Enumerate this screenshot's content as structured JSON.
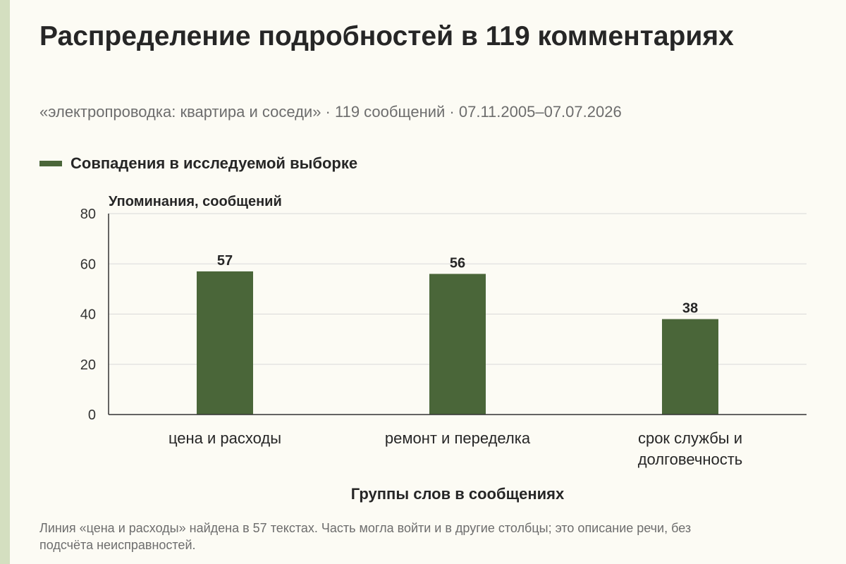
{
  "title": "Распределение подробностей в 119 комментариях",
  "subtitle": "«электропроводка: квартира и соседи» · 119 сообщений · 07.11.2005–07.07.2026",
  "note": "Линия «цена и расходы» найдена в 57 текстах. Часть могла войти и в другие столбцы; это описание речи, без подсчёта неисправностей.",
  "colors": {
    "bar": "#4a6639",
    "accent_strip": "#d4dfc0",
    "grid": "#d9d9d9",
    "axis": "#333333"
  },
  "chart_data": {
    "type": "bar",
    "title": "Распределение подробностей в 119 комментариях",
    "categories": [
      "цена и расходы",
      "ремонт и переделка",
      "срок службы и долговечность"
    ],
    "category_lines": [
      [
        "цена и расходы"
      ],
      [
        "ремонт и переделка"
      ],
      [
        "срок службы и",
        "долговечность"
      ]
    ],
    "series": [
      {
        "name": "Совпадения в исследуемой выборке",
        "values": [
          57,
          56,
          38
        ]
      }
    ],
    "xlabel": "Группы слов в сообщениях",
    "ylabel": "Упоминания, сообщений",
    "ylim": [
      0,
      80
    ],
    "yticks": [
      0,
      20,
      40,
      60,
      80
    ],
    "grid": true,
    "legend": "top-left"
  }
}
